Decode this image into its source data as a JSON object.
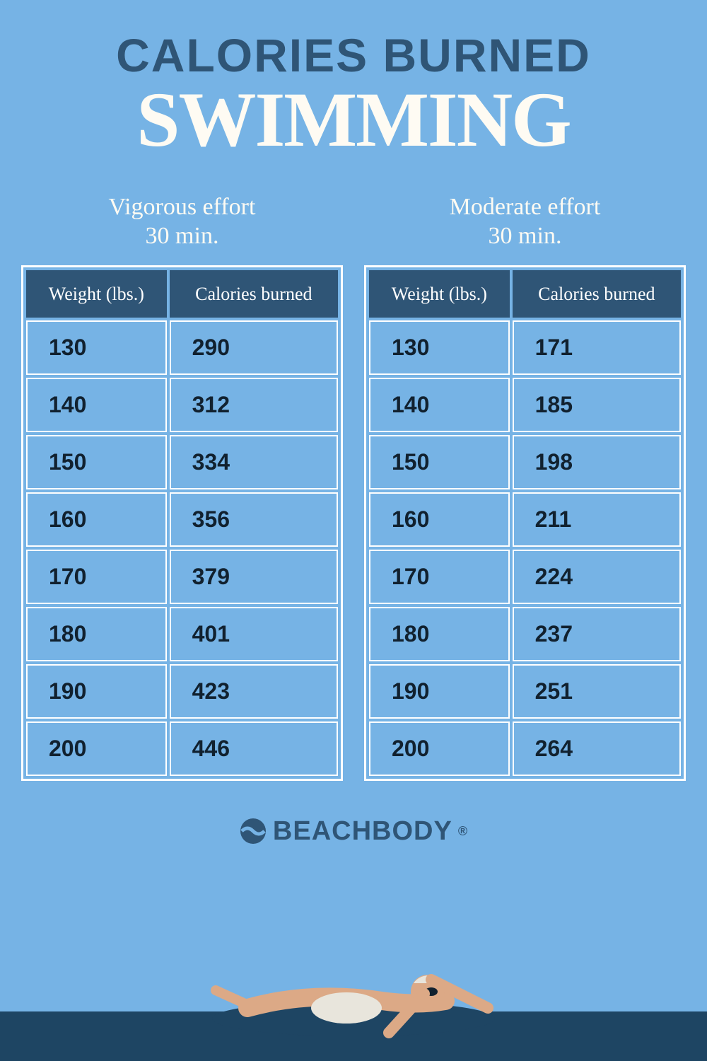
{
  "colors": {
    "background": "#76b3e5",
    "dark_blue": "#2f5576",
    "off_white": "#fefbf3",
    "white": "#ffffff",
    "near_black": "#11212f",
    "water": "#1e4563",
    "skin": "#dca986",
    "shorts": "#e8e5dc"
  },
  "title": {
    "line1": "CALORIES BURNED",
    "line2": "SWIMMING",
    "line1_fontsize": 66,
    "line2_fontsize": 110
  },
  "tables": {
    "header_weight": "Weight (lbs.)",
    "header_calories": "Calories burned",
    "vigorous": {
      "label_line1": "Vigorous effort",
      "label_line2": "30 min.",
      "rows": [
        {
          "weight": "130",
          "calories": "290"
        },
        {
          "weight": "140",
          "calories": "312"
        },
        {
          "weight": "150",
          "calories": "334"
        },
        {
          "weight": "160",
          "calories": "356"
        },
        {
          "weight": "170",
          "calories": "379"
        },
        {
          "weight": "180",
          "calories": "401"
        },
        {
          "weight": "190",
          "calories": "423"
        },
        {
          "weight": "200",
          "calories": "446"
        }
      ]
    },
    "moderate": {
      "label_line1": "Moderate effort",
      "label_line2": "30 min.",
      "rows": [
        {
          "weight": "130",
          "calories": "171"
        },
        {
          "weight": "140",
          "calories": "185"
        },
        {
          "weight": "150",
          "calories": "198"
        },
        {
          "weight": "160",
          "calories": "211"
        },
        {
          "weight": "170",
          "calories": "224"
        },
        {
          "weight": "180",
          "calories": "237"
        },
        {
          "weight": "190",
          "calories": "251"
        },
        {
          "weight": "200",
          "calories": "264"
        }
      ]
    }
  },
  "logo": {
    "text": "BEACHBODY",
    "registered": "®"
  }
}
